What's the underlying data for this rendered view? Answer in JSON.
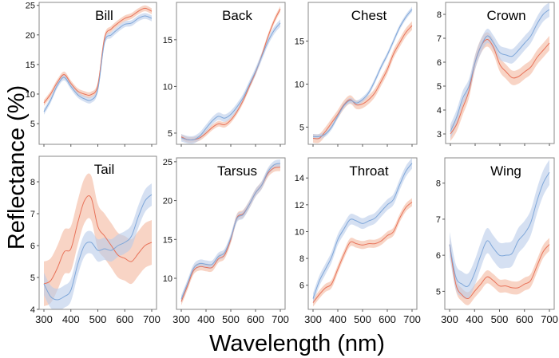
{
  "chart_data": {
    "type": "line",
    "xlabel": "Wavelength (nm)",
    "ylabel": "Reflectance (%)",
    "colors": {
      "series_a_line": "#e8735a",
      "series_a_band": "#f4b79f",
      "series_b_line": "#7fa7d9",
      "series_b_band": "#b9cbea"
    },
    "xlim": [
      300,
      700
    ],
    "xticks": [
      300,
      400,
      500,
      600,
      700
    ],
    "panels": [
      {
        "title": "Bill",
        "ylim": [
          1.5,
          25.5
        ],
        "yticks": [
          5,
          10,
          15,
          20,
          25
        ],
        "show_xtick_labels": false,
        "x": [
          300,
          325,
          350,
          375,
          400,
          425,
          450,
          475,
          500,
          525,
          550,
          575,
          600,
          625,
          650,
          675,
          700
        ],
        "series": [
          {
            "name": "orange",
            "mean": [
              8.5,
              10.0,
              12.0,
              13.3,
              11.8,
              10.5,
              10.0,
              9.9,
              11.5,
              19.5,
              21.0,
              22.0,
              22.8,
              23.2,
              24.0,
              24.5,
              24.0
            ],
            "band": 0.5
          },
          {
            "name": "blue",
            "mean": [
              7.0,
              9.0,
              11.5,
              12.8,
              11.3,
              9.9,
              9.2,
              9.0,
              10.8,
              18.8,
              20.0,
              21.0,
              21.8,
              22.0,
              22.8,
              23.2,
              22.8
            ],
            "band": 0.5
          }
        ]
      },
      {
        "title": "Back",
        "ylim": [
          3.8,
          19
        ],
        "yticks": [
          5,
          10,
          15
        ],
        "show_xtick_labels": false,
        "x": [
          300,
          325,
          350,
          375,
          400,
          425,
          450,
          475,
          500,
          525,
          550,
          575,
          600,
          625,
          650,
          675,
          700
        ],
        "series": [
          {
            "name": "orange",
            "mean": [
              4.6,
              4.3,
              4.3,
              4.5,
              5.0,
              5.6,
              6.0,
              5.9,
              6.4,
              7.3,
              8.5,
              10.0,
              11.5,
              13.3,
              15.3,
              17.0,
              18.3
            ],
            "band": 0.3
          },
          {
            "name": "blue",
            "mean": [
              4.5,
              4.3,
              4.3,
              4.7,
              5.5,
              6.3,
              6.8,
              6.6,
              7.0,
              7.8,
              8.8,
              10.2,
              11.6,
              13.2,
              14.8,
              16.0,
              16.8
            ],
            "band": 0.4
          }
        ]
      },
      {
        "title": "Chest",
        "ylim": [
          3.0,
          19.5
        ],
        "yticks": [
          5,
          10,
          15
        ],
        "show_xtick_labels": false,
        "x": [
          300,
          325,
          350,
          375,
          400,
          425,
          450,
          475,
          500,
          525,
          550,
          575,
          600,
          625,
          650,
          675,
          700
        ],
        "series": [
          {
            "name": "orange",
            "mean": [
              3.7,
              3.7,
              4.5,
              5.5,
              6.5,
              7.6,
              8.2,
              7.6,
              7.7,
              8.2,
              9.0,
              10.3,
              11.7,
              13.5,
              14.8,
              16.0,
              16.8
            ],
            "band": 0.5
          },
          {
            "name": "blue",
            "mean": [
              3.9,
              3.9,
              4.2,
              5.0,
              6.3,
              7.5,
              8.1,
              7.8,
              8.2,
              9.0,
              10.4,
              12.0,
              13.4,
              15.0,
              16.6,
              17.8,
              18.7
            ],
            "band": 0.3
          }
        ]
      },
      {
        "title": "Crown",
        "ylim": [
          2.6,
          8.5
        ],
        "yticks": [
          3,
          4,
          5,
          6,
          7,
          8
        ],
        "show_xtick_labels": false,
        "x": [
          300,
          325,
          350,
          375,
          400,
          425,
          450,
          475,
          500,
          525,
          550,
          575,
          600,
          625,
          650,
          675,
          700
        ],
        "series": [
          {
            "name": "orange",
            "mean": [
              3.0,
              3.4,
              4.1,
              4.8,
              6.0,
              6.7,
              6.95,
              6.6,
              5.9,
              5.6,
              5.35,
              5.4,
              5.6,
              5.8,
              6.2,
              6.5,
              6.8
            ],
            "band": 0.3
          },
          {
            "name": "blue",
            "mean": [
              3.1,
              3.7,
              4.5,
              5.0,
              6.0,
              6.7,
              7.1,
              6.8,
              6.4,
              6.3,
              6.25,
              6.5,
              6.8,
              7.1,
              7.6,
              8.0,
              8.2
            ],
            "band": 0.3
          }
        ]
      },
      {
        "title": "Tail",
        "ylim": [
          4.0,
          8.8
        ],
        "yticks": [
          4,
          5,
          6,
          7,
          8
        ],
        "show_xtick_labels": true,
        "x": [
          300,
          325,
          350,
          375,
          400,
          425,
          450,
          475,
          500,
          525,
          550,
          575,
          600,
          625,
          650,
          675,
          700
        ],
        "series": [
          {
            "name": "orange",
            "mean": [
              4.8,
              4.9,
              5.3,
              5.8,
              5.9,
              6.7,
              7.4,
              7.5,
              6.6,
              6.3,
              6.0,
              5.7,
              5.6,
              5.5,
              5.75,
              6.0,
              6.1
            ],
            "band": 0.7
          },
          {
            "name": "blue",
            "mean": [
              4.8,
              4.4,
              4.3,
              4.4,
              4.6,
              5.4,
              6.0,
              6.1,
              5.85,
              5.9,
              5.85,
              6.0,
              6.1,
              6.3,
              6.9,
              7.4,
              7.6
            ],
            "band": 0.35
          }
        ]
      },
      {
        "title": "Tarsus",
        "ylim": [
          6.0,
          25.5
        ],
        "yticks": [
          10,
          15,
          20,
          25
        ],
        "show_xtick_labels": true,
        "x": [
          300,
          325,
          350,
          375,
          400,
          425,
          450,
          475,
          500,
          525,
          550,
          575,
          600,
          625,
          650,
          675,
          700
        ],
        "series": [
          {
            "name": "orange",
            "mean": [
              7.0,
              9.0,
              11.0,
              11.5,
              11.4,
              11.4,
              12.5,
              13.0,
              15.0,
              17.8,
              18.3,
              19.5,
              21.0,
              22.0,
              23.5,
              24.2,
              24.3
            ],
            "band": 0.5
          },
          {
            "name": "blue",
            "mean": [
              7.3,
              9.3,
              11.3,
              11.9,
              11.8,
              11.8,
              12.8,
              13.3,
              15.2,
              17.7,
              18.2,
              19.5,
              21.0,
              22.0,
              23.7,
              24.6,
              24.8
            ],
            "band": 0.5
          }
        ]
      },
      {
        "title": "Throat",
        "ylim": [
          4.2,
          15.5
        ],
        "yticks": [
          6,
          8,
          10,
          12,
          14
        ],
        "show_xtick_labels": true,
        "x": [
          300,
          325,
          350,
          375,
          400,
          425,
          450,
          475,
          500,
          525,
          550,
          575,
          600,
          625,
          650,
          675,
          700
        ],
        "series": [
          {
            "name": "orange",
            "mean": [
              4.7,
              5.3,
              5.8,
              6.1,
              7.2,
              8.3,
              9.2,
              9.1,
              9.0,
              9.1,
              9.1,
              9.3,
              9.7,
              10.0,
              11.0,
              11.8,
              12.2
            ],
            "band": 0.3
          },
          {
            "name": "blue",
            "mean": [
              5.0,
              6.3,
              7.2,
              8.1,
              9.4,
              10.2,
              10.9,
              10.8,
              10.6,
              10.8,
              11.0,
              11.5,
              12.0,
              12.4,
              13.5,
              14.5,
              15.1
            ],
            "band": 0.4
          }
        ]
      },
      {
        "title": "Wing",
        "ylim": [
          4.5,
          8.7
        ],
        "yticks": [
          5,
          6,
          7,
          8
        ],
        "show_xtick_labels": true,
        "x": [
          300,
          325,
          350,
          375,
          400,
          425,
          450,
          475,
          500,
          525,
          550,
          575,
          600,
          625,
          650,
          675,
          700
        ],
        "series": [
          {
            "name": "orange",
            "mean": [
              6.3,
              5.2,
              4.9,
              4.8,
              5.0,
              5.2,
              5.4,
              5.3,
              5.15,
              5.15,
              5.1,
              5.1,
              5.2,
              5.3,
              5.7,
              6.1,
              6.3
            ],
            "band": 0.18
          },
          {
            "name": "blue",
            "mean": [
              6.3,
              5.4,
              5.2,
              5.15,
              5.5,
              6.0,
              6.4,
              6.2,
              6.0,
              6.0,
              6.05,
              6.4,
              6.6,
              6.9,
              7.5,
              8.0,
              8.3
            ],
            "band": 0.35
          }
        ]
      }
    ]
  }
}
